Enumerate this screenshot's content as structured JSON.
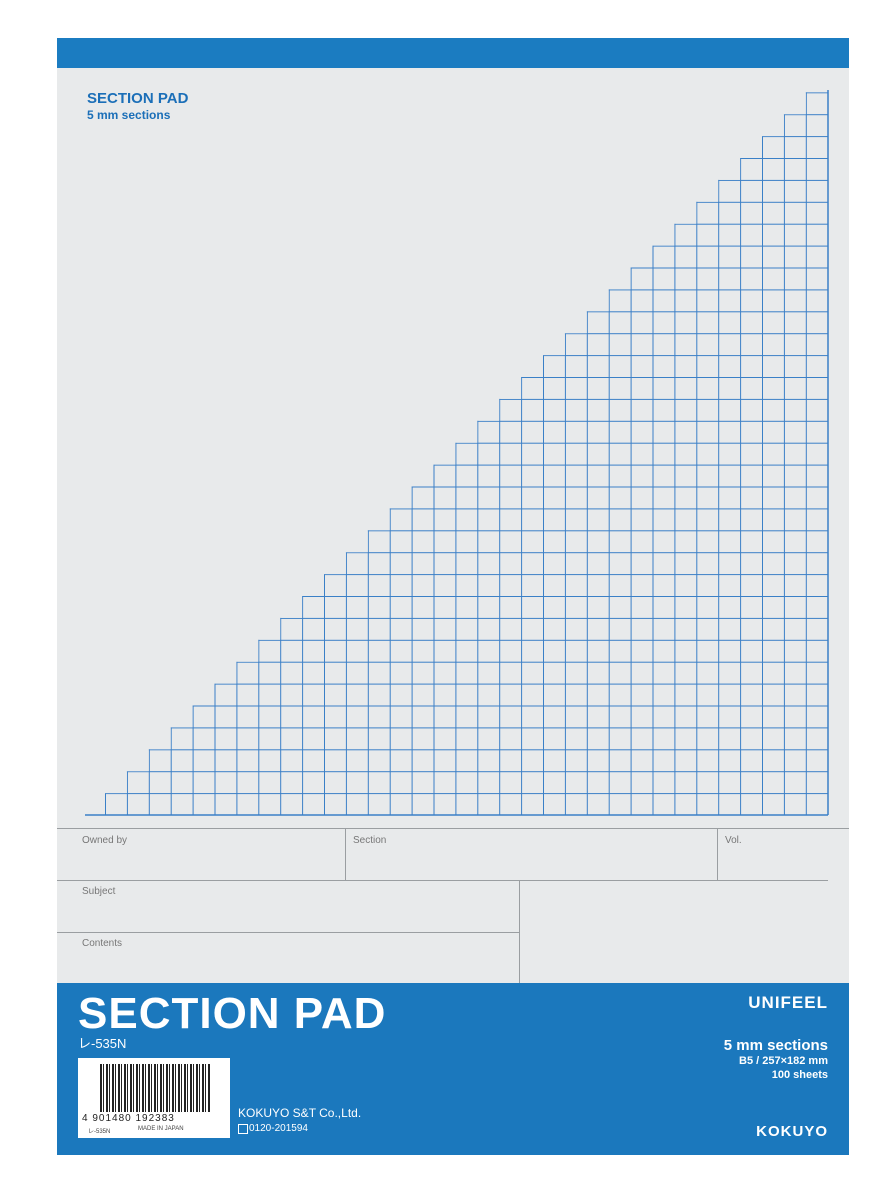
{
  "header": {
    "title": "SECTION PAD",
    "subtitle": "5 mm sections"
  },
  "form": {
    "owned_by": "Owned by",
    "section": "Section",
    "vol": "Vol.",
    "subject": "Subject",
    "contents": "Contents"
  },
  "footer": {
    "title": "SECTION PAD",
    "code": "レ-535N",
    "brand": "UNIFEEL",
    "spec": "5 mm sections",
    "size": "B5 / 257×182 mm",
    "sheets": "100 sheets",
    "barcode_number": "4 901480 192383",
    "barcode_code": "レ-535N",
    "barcode_origin": "MADE IN JAPAN",
    "company": "KOKUYO S&T Co.,Ltd.",
    "phone": "0120-201594",
    "maker": "KOKUYO"
  }
}
